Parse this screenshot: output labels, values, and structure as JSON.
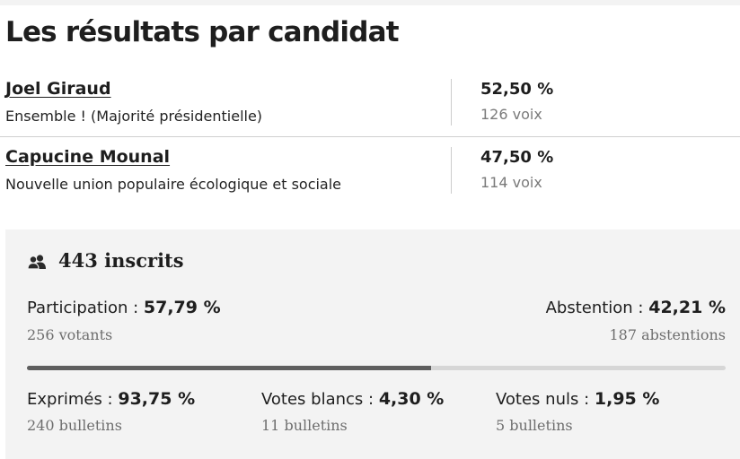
{
  "title": "Les résultats par candidat",
  "candidates": [
    {
      "name": "Joel Giraud",
      "party": "Ensemble ! (Majorité présidentielle)",
      "percent": "52,50 %",
      "votes": "126 voix"
    },
    {
      "name": "Capucine Mounal",
      "party": "Nouvelle union populaire écologique et sociale",
      "percent": "47,50 %",
      "votes": "114 voix"
    }
  ],
  "stats": {
    "inscrits_icon": "users-icon",
    "inscrits": "443 inscrits",
    "participation": {
      "label": "Participation : ",
      "value": "57,79 %",
      "sub": "256 votants",
      "fraction": 0.5779
    },
    "abstention": {
      "label": "Abstention : ",
      "value": "42,21 %",
      "sub": "187 abstentions"
    },
    "exprimes": {
      "label": "Exprimés : ",
      "value": "93,75 %",
      "sub": "240 bulletins"
    },
    "blancs": {
      "label": "Votes blancs : ",
      "value": "4,30 %",
      "sub": "11 bulletins"
    },
    "nuls": {
      "label": "Votes nuls : ",
      "value": "1,95 %",
      "sub": "5 bulletins"
    }
  },
  "colors": {
    "bar_fill": "#5e5e5e",
    "bar_track": "#d6d6d6",
    "panel_bg": "#f3f3f3"
  }
}
